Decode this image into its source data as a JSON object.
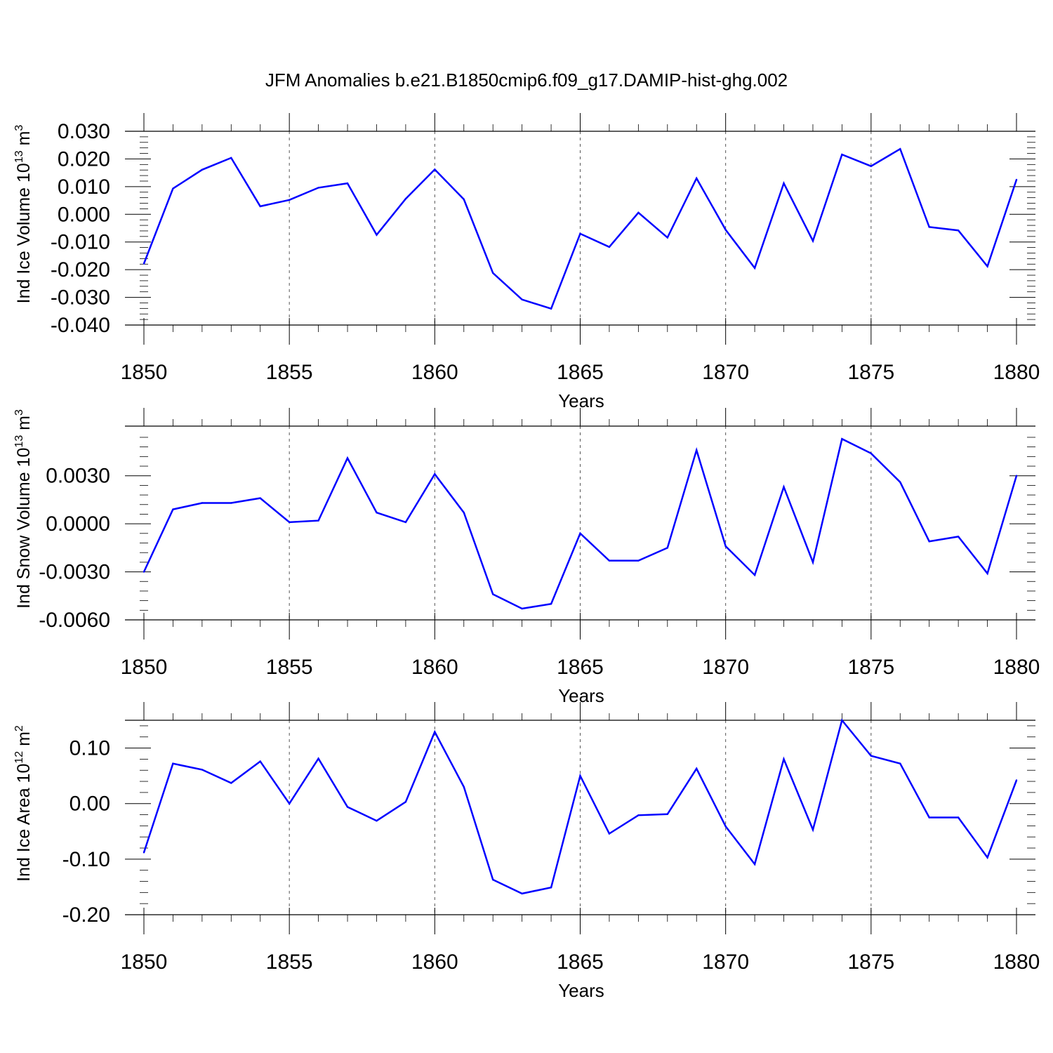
{
  "title": "JFM Anomalies b.e21.B1850cmip6.f09_g17.DAMIP-hist-ghg.002",
  "colors": {
    "line": "#0000ff",
    "axis": "#000000",
    "grid": "#555555"
  },
  "chart_data": [
    {
      "type": "line",
      "ylabel": "Ind Ice Volume 10",
      "ylabel_exp": "13",
      "ylabel_unit": " m",
      "ylabel_unit_exp": "3",
      "xlabel": "Years",
      "xlim": [
        1850,
        1880
      ],
      "ylim": [
        -0.04,
        0.03
      ],
      "yticks": [
        -0.04,
        -0.03,
        -0.02,
        -0.01,
        0.0,
        0.01,
        0.02,
        0.03
      ],
      "ytick_labels": [
        "-0.040",
        "-0.030",
        "-0.020",
        "-0.010",
        "0.000",
        "0.010",
        "0.020",
        "0.030"
      ],
      "xticks": [
        1850,
        1855,
        1860,
        1865,
        1870,
        1875,
        1880
      ],
      "xtick_labels": [
        "1850",
        "1855",
        "1860",
        "1865",
        "1870",
        "1875",
        "1880"
      ],
      "grid": "vertical dashed at major x ticks",
      "x": [
        1850,
        1851,
        1852,
        1853,
        1854,
        1855,
        1856,
        1857,
        1858,
        1859,
        1860,
        1861,
        1862,
        1863,
        1864,
        1865,
        1866,
        1867,
        1868,
        1869,
        1870,
        1871,
        1872,
        1873,
        1874,
        1875,
        1876,
        1877,
        1878,
        1879,
        1880
      ],
      "values": [
        -0.0178,
        0.0093,
        0.0161,
        0.0204,
        0.0029,
        0.0052,
        0.0096,
        0.0112,
        -0.0074,
        0.0056,
        0.0162,
        0.0054,
        -0.0212,
        -0.0308,
        -0.0341,
        -0.007,
        -0.0118,
        0.0006,
        -0.0084,
        0.013,
        -0.0056,
        -0.0194,
        0.0112,
        -0.0096,
        0.0216,
        0.0174,
        0.0236,
        -0.0046,
        -0.0058,
        -0.0188,
        0.0125
      ]
    },
    {
      "type": "line",
      "ylabel": "Ind Snow Volume 10",
      "ylabel_exp": "13",
      "ylabel_unit": " m",
      "ylabel_unit_exp": "3",
      "xlabel": "Years",
      "xlim": [
        1850,
        1880
      ],
      "ylim": [
        -0.006,
        0.0061
      ],
      "yticks": [
        -0.006,
        -0.003,
        0.0,
        0.003
      ],
      "ytick_labels": [
        "-0.0060",
        "-0.0030",
        "0.0000",
        "0.0030"
      ],
      "xticks": [
        1850,
        1855,
        1860,
        1865,
        1870,
        1875,
        1880
      ],
      "xtick_labels": [
        "1850",
        "1855",
        "1860",
        "1865",
        "1870",
        "1875",
        "1880"
      ],
      "grid": "vertical dashed at major x ticks",
      "x": [
        1850,
        1851,
        1852,
        1853,
        1854,
        1855,
        1856,
        1857,
        1858,
        1859,
        1860,
        1861,
        1862,
        1863,
        1864,
        1865,
        1866,
        1867,
        1868,
        1869,
        1870,
        1871,
        1872,
        1873,
        1874,
        1875,
        1876,
        1877,
        1878,
        1879,
        1880
      ],
      "values": [
        -0.003,
        0.0009,
        0.0013,
        0.0013,
        0.0016,
        0.0001,
        0.0002,
        0.0041,
        0.0007,
        0.0001,
        0.0031,
        0.0007,
        -0.0044,
        -0.0053,
        -0.005,
        -0.0006,
        -0.0023,
        -0.0023,
        -0.0015,
        0.0046,
        -0.0014,
        -0.0032,
        0.0023,
        -0.0024,
        0.0053,
        0.0044,
        0.0026,
        -0.0011,
        -0.0008,
        -0.0031,
        0.003
      ]
    },
    {
      "type": "line",
      "ylabel": "Ind Ice Area 10",
      "ylabel_exp": "12",
      "ylabel_unit": " m",
      "ylabel_unit_exp": "2",
      "xlabel": "Years",
      "xlim": [
        1850,
        1880
      ],
      "ylim": [
        -0.2,
        0.15
      ],
      "yticks": [
        -0.2,
        -0.1,
        0.0,
        0.1
      ],
      "ytick_labels": [
        "-0.20",
        "-0.10",
        "0.00",
        "0.10"
      ],
      "xticks": [
        1850,
        1855,
        1860,
        1865,
        1870,
        1875,
        1880
      ],
      "xtick_labels": [
        "1850",
        "1855",
        "1860",
        "1865",
        "1870",
        "1875",
        "1880"
      ],
      "grid": "vertical dashed at major x ticks",
      "x": [
        1850,
        1851,
        1852,
        1853,
        1854,
        1855,
        1856,
        1857,
        1858,
        1859,
        1860,
        1861,
        1862,
        1863,
        1864,
        1865,
        1866,
        1867,
        1868,
        1869,
        1870,
        1871,
        1872,
        1873,
        1874,
        1875,
        1876,
        1877,
        1878,
        1879,
        1880
      ],
      "values": [
        -0.088,
        0.072,
        0.061,
        0.037,
        0.076,
        0.0,
        0.081,
        -0.006,
        -0.031,
        0.003,
        0.129,
        0.03,
        -0.137,
        -0.162,
        -0.151,
        0.05,
        -0.054,
        -0.021,
        -0.019,
        0.063,
        -0.041,
        -0.109,
        0.08,
        -0.047,
        0.15,
        0.086,
        0.072,
        -0.025,
        -0.025,
        -0.097,
        0.042
      ]
    }
  ]
}
